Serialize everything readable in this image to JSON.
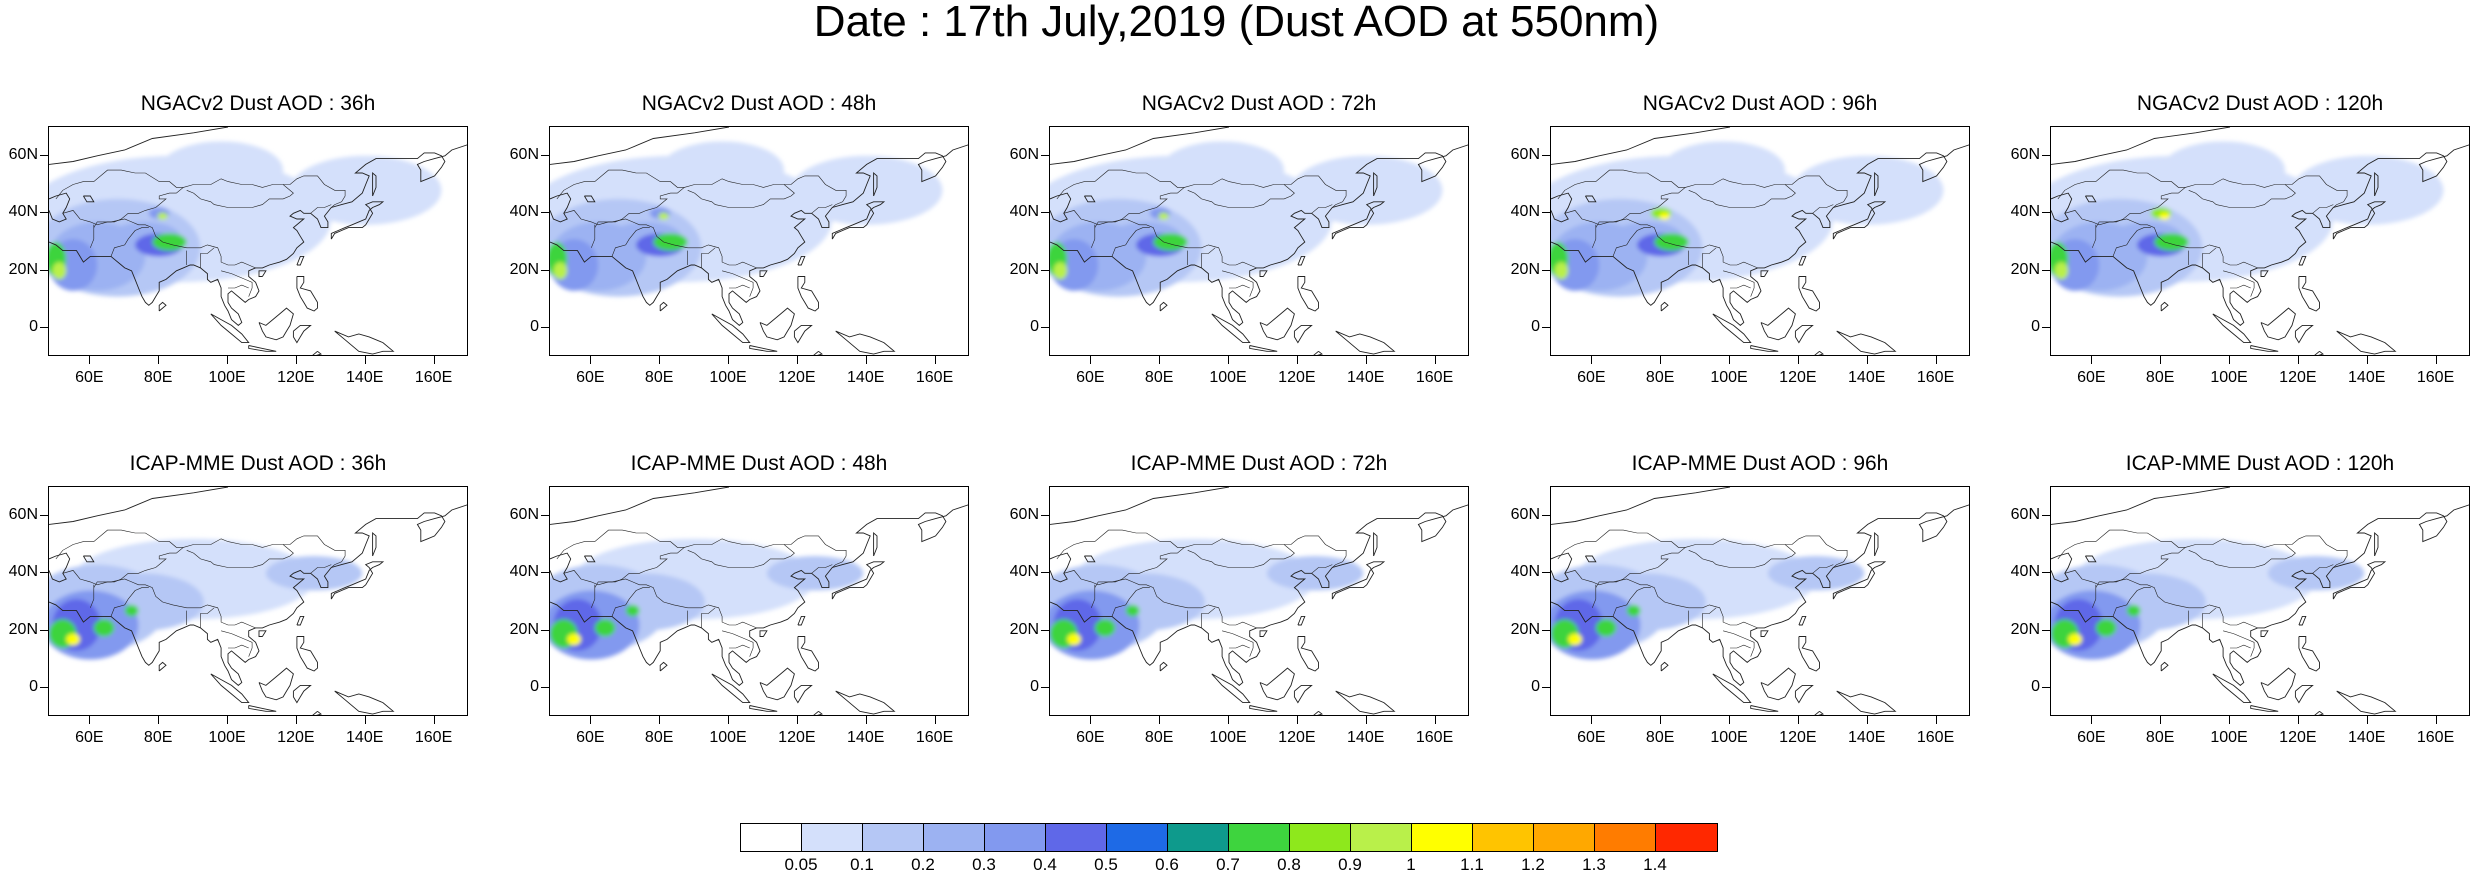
{
  "title": "Date : 17th July,2019 (Dust AOD at 550nm)",
  "lat_labels": [
    "60N",
    "40N",
    "20N",
    "0"
  ],
  "lon_labels": [
    "60E",
    "80E",
    "100E",
    "120E",
    "140E",
    "160E"
  ],
  "panels": [
    {
      "row": 0,
      "col": 0,
      "title": "NGACv2 Dust AOD : 36h",
      "model": "NGAC",
      "lead": 36
    },
    {
      "row": 0,
      "col": 1,
      "title": "NGACv2 Dust AOD : 48h",
      "model": "NGAC",
      "lead": 48
    },
    {
      "row": 0,
      "col": 2,
      "title": "NGACv2 Dust AOD : 72h",
      "model": "NGAC",
      "lead": 72
    },
    {
      "row": 0,
      "col": 3,
      "title": "NGACv2 Dust AOD : 96h",
      "model": "NGAC",
      "lead": 96
    },
    {
      "row": 0,
      "col": 4,
      "title": "NGACv2 Dust AOD : 120h",
      "model": "NGAC",
      "lead": 120
    },
    {
      "row": 1,
      "col": 0,
      "title": "ICAP-MME Dust AOD : 36h",
      "model": "ICAP",
      "lead": 36
    },
    {
      "row": 1,
      "col": 1,
      "title": "ICAP-MME Dust AOD : 48h",
      "model": "ICAP",
      "lead": 48
    },
    {
      "row": 1,
      "col": 2,
      "title": "ICAP-MME Dust AOD : 72h",
      "model": "ICAP",
      "lead": 72
    },
    {
      "row": 1,
      "col": 3,
      "title": "ICAP-MME Dust AOD : 96h",
      "model": "ICAP",
      "lead": 96
    },
    {
      "row": 1,
      "col": 4,
      "title": "ICAP-MME Dust AOD : 120h",
      "model": "ICAP",
      "lead": 120
    }
  ],
  "colorbar": {
    "labels": [
      "0.05",
      "0.1",
      "0.2",
      "0.3",
      "0.4",
      "0.5",
      "0.6",
      "0.7",
      "0.8",
      "0.9",
      "1",
      "1.1",
      "1.2",
      "1.3",
      "1.4"
    ],
    "colors": [
      "#ffffff",
      "#d4e0fb",
      "#b5c7f5",
      "#9cb2f2",
      "#8299ef",
      "#5f68e8",
      "#1e6ae6",
      "#0e9a8c",
      "#3ed43e",
      "#8ee81c",
      "#b9f04a",
      "#ffff00",
      "#ffc400",
      "#ffa800",
      "#ff7c00",
      "#ff2800"
    ]
  },
  "map_extent": {
    "lon": [
      48,
      170
    ],
    "lat": [
      -10,
      70
    ]
  }
}
